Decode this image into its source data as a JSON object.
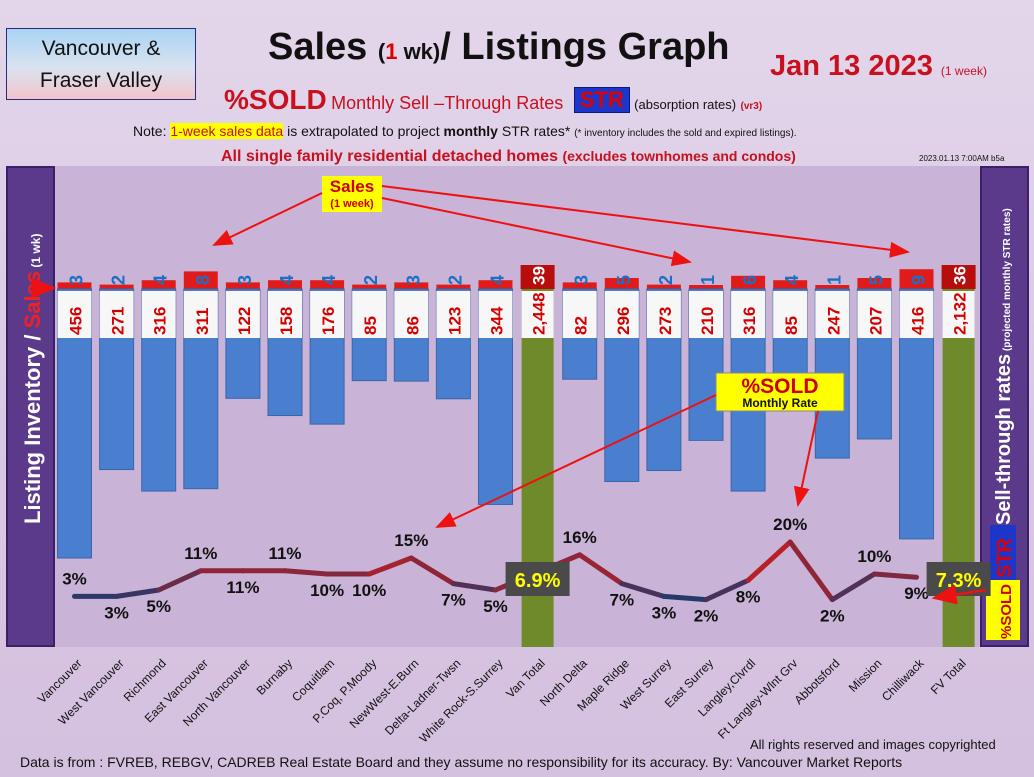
{
  "header": {
    "region_line1": "Vancouver &",
    "region_line2": "Fraser Valley",
    "title_pre": "Sales ",
    "title_paren_open": "(",
    "title_num": "1",
    "title_wk": " wk)",
    "title_post": "/ Listings Graph",
    "date": "Jan 13  2023",
    "date_note": "(1 week)",
    "sold_label": "%SOLD",
    "subtitle_text": "Monthly Sell –Through Rates",
    "str_label": "STR",
    "absorption": "(absorption rates)",
    "version": "(vr3)",
    "note_prefix": "Note: ",
    "note_highlight": "1-week sales data",
    "note_mid": " is extrapolated to project ",
    "note_bold": "monthly",
    "note_tail": " STR rates* ",
    "note_tiny": "(* inventory includes the sold and expired listings).",
    "desc_main": "All single family residential detached homes ",
    "desc_small": "(excludes townhomes and condos)",
    "timestamp": "2023.01.13 7:00AM b5a"
  },
  "footer": {
    "source": "Data is from : FVREB, REBGV, CADREB Real Estate Board and they assume no responsibility for its accuracy. By: Vancouver Market Reports",
    "rights": "All rights reserved and  images copyrighted"
  },
  "colors": {
    "inventory_bar": "#4a7fd0",
    "total_bar": "#6f8a2a",
    "sales_bar": "#e01b1b",
    "label_red": "#d40000",
    "label_blue": "#1d6fc4",
    "side_panel": "#5b3a8c",
    "line_low": "#1f3a6e",
    "line_high": "#d11a1a",
    "arrow": "#ee1111"
  },
  "chart_data": {
    "type": "bar",
    "left_axis_label_1": "Listing Inventory ",
    "left_axis_label_2": "/ ",
    "left_axis_label_3": "Sales",
    "left_axis_label_4": " (1 wk)",
    "right_axis_label_1": "Sell-through rates",
    "right_axis_label_2": " (projected monthly STR rates)",
    "right_str": "STR",
    "right_sold": "%SOLD",
    "callout_sales_1": "Sales",
    "callout_sales_2": "(1 week)",
    "callout_sold_1": "%SOLD",
    "callout_sold_2": "Monthly Rate",
    "categories": [
      "Vancouver",
      "West Vancouver",
      "Richmond",
      "East Vancouver",
      "North Vancouver",
      "Burnaby",
      "Coquitlam",
      "P.Coq, P.Moody",
      "NewWest-E.Burn",
      "Delta-Ladner-Twsn",
      "White Rock-S.Surrey",
      "Van Total",
      "North Delta",
      "Maple Ridge",
      "West Surrey",
      "East Surrey",
      "Langley,Clvrdl",
      "Ft Langley-Wlnt Grv",
      "Abbotsford",
      "Mission",
      "Chilliwack",
      "FV Total"
    ],
    "totals": [
      false,
      false,
      false,
      false,
      false,
      false,
      false,
      false,
      false,
      false,
      false,
      true,
      false,
      false,
      false,
      false,
      false,
      false,
      false,
      false,
      false,
      true
    ],
    "series": [
      {
        "name": "Listing Inventory",
        "values": [
          456,
          271,
          316,
          311,
          122,
          158,
          176,
          85,
          86,
          123,
          344,
          2448,
          82,
          296,
          273,
          210,
          316,
          85,
          247,
          207,
          416,
          2132
        ]
      },
      {
        "name": "Sales",
        "values": [
          3,
          2,
          4,
          8,
          3,
          4,
          4,
          2,
          3,
          2,
          4,
          39,
          3,
          5,
          2,
          1,
          6,
          4,
          1,
          5,
          9,
          36
        ]
      },
      {
        "name": "%SOLD",
        "values": [
          3,
          3,
          5,
          11,
          11,
          11,
          10,
          10,
          15,
          7,
          5,
          6.9,
          16,
          7,
          3,
          2,
          8,
          20,
          2,
          10,
          9,
          7.3
        ]
      }
    ],
    "inventory_labels": [
      "456",
      "271",
      "316",
      "311",
      "122",
      "158",
      "176",
      "85",
      "86",
      "123",
      "344",
      "2,448",
      "82",
      "296",
      "273",
      "210",
      "316",
      "85",
      "247",
      "207",
      "416",
      "2,132"
    ],
    "sales_labels": [
      "3",
      "2",
      "4",
      "8",
      "3",
      "4",
      "4",
      "2",
      "3",
      "2",
      "4",
      "39",
      "3",
      "5",
      "2",
      "1",
      "6",
      "4",
      "1",
      "5",
      "9",
      "36"
    ],
    "pct_labels": [
      "3%",
      "3%",
      "5%",
      "11%",
      "11%",
      "11%",
      "10%",
      "10%",
      "15%",
      "7%",
      "5%",
      "6.9%",
      "16%",
      "7%",
      "3%",
      "2%",
      "8%",
      "20%",
      "2%",
      "10%",
      "9%",
      "7.3%"
    ],
    "pct_label_above": [
      true,
      false,
      false,
      true,
      false,
      true,
      false,
      false,
      true,
      false,
      false,
      true,
      true,
      false,
      false,
      false,
      false,
      true,
      false,
      true,
      false,
      true
    ],
    "grid": false,
    "legend": "none"
  }
}
